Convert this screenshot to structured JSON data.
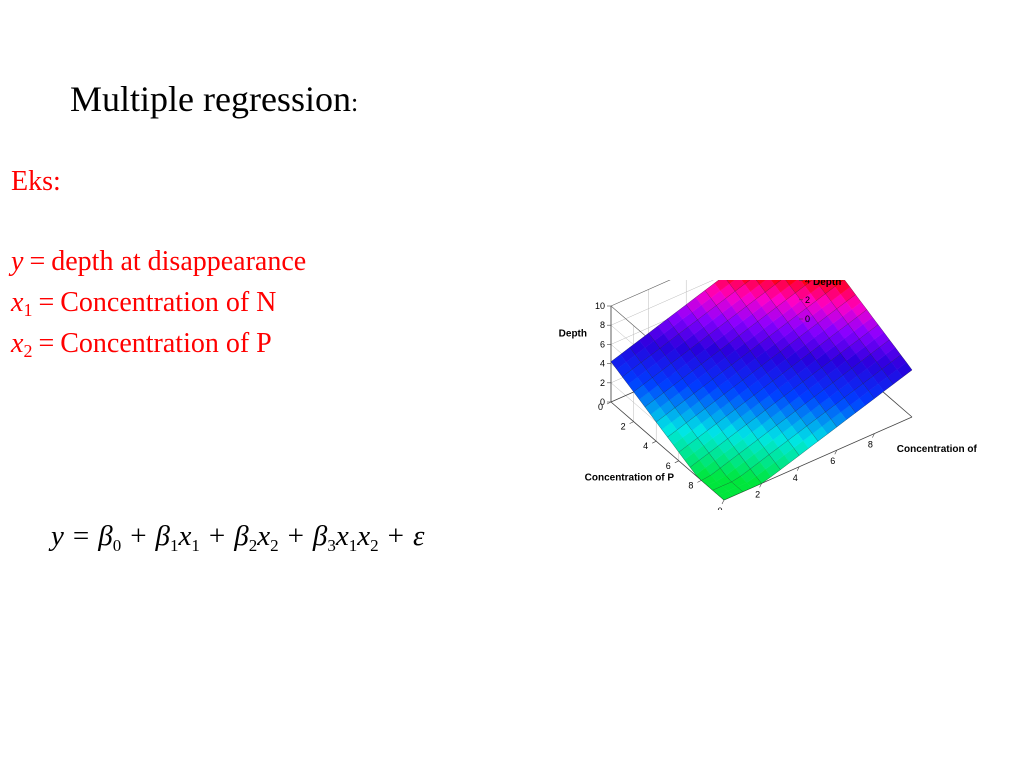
{
  "slide": {
    "title": "Multiple regression",
    "title_colon": ":",
    "example_label": "Eks:",
    "definitions": [
      {
        "var": "y",
        "sub": "",
        "eq": "=",
        "text": "depth at disappearance"
      },
      {
        "var": "x",
        "sub": "1",
        "eq": "=",
        "text": "Concentration of N"
      },
      {
        "var": "x",
        "sub": "2",
        "eq": "=",
        "text": "Concentration of P"
      }
    ],
    "formula": {
      "lhs": "y",
      "eq": "=",
      "terms": [
        {
          "sym": "β",
          "sub": "0",
          "vars": []
        },
        {
          "sym": "β",
          "sub": "1",
          "vars": [
            {
              "v": "x",
              "s": "1"
            }
          ]
        },
        {
          "sym": "β",
          "sub": "2",
          "vars": [
            {
              "v": "x",
              "s": "2"
            }
          ]
        },
        {
          "sym": "β",
          "sub": "3",
          "vars": [
            {
              "v": "x",
              "s": "1"
            },
            {
              "v": "x",
              "s": "2"
            }
          ]
        }
      ],
      "error": "ε",
      "plus": "+"
    },
    "text_color": "#ff0000"
  },
  "chart_data": {
    "type": "surface",
    "x_label": "Concentration of N",
    "y_label": "Concentration of P",
    "z_label": "Depth",
    "x_ticks": [
      "0",
      "2",
      "4",
      "6",
      "8"
    ],
    "y_ticks": [
      "0",
      "2",
      "4",
      "6",
      "8"
    ],
    "z_ticks_left": [
      "0",
      "2",
      "4",
      "6",
      "8",
      "10"
    ],
    "z_ticks_right": [
      "0",
      "2",
      "4",
      "6",
      "8",
      "10"
    ],
    "xlim": [
      0,
      10
    ],
    "ylim": [
      0,
      10
    ],
    "zlim": [
      0,
      10
    ],
    "surface": "z = 4.2 + 0.62*x1 - 0.55*x2 (clipped to 0..10)",
    "grid": true,
    "colormap": "rainbow"
  }
}
